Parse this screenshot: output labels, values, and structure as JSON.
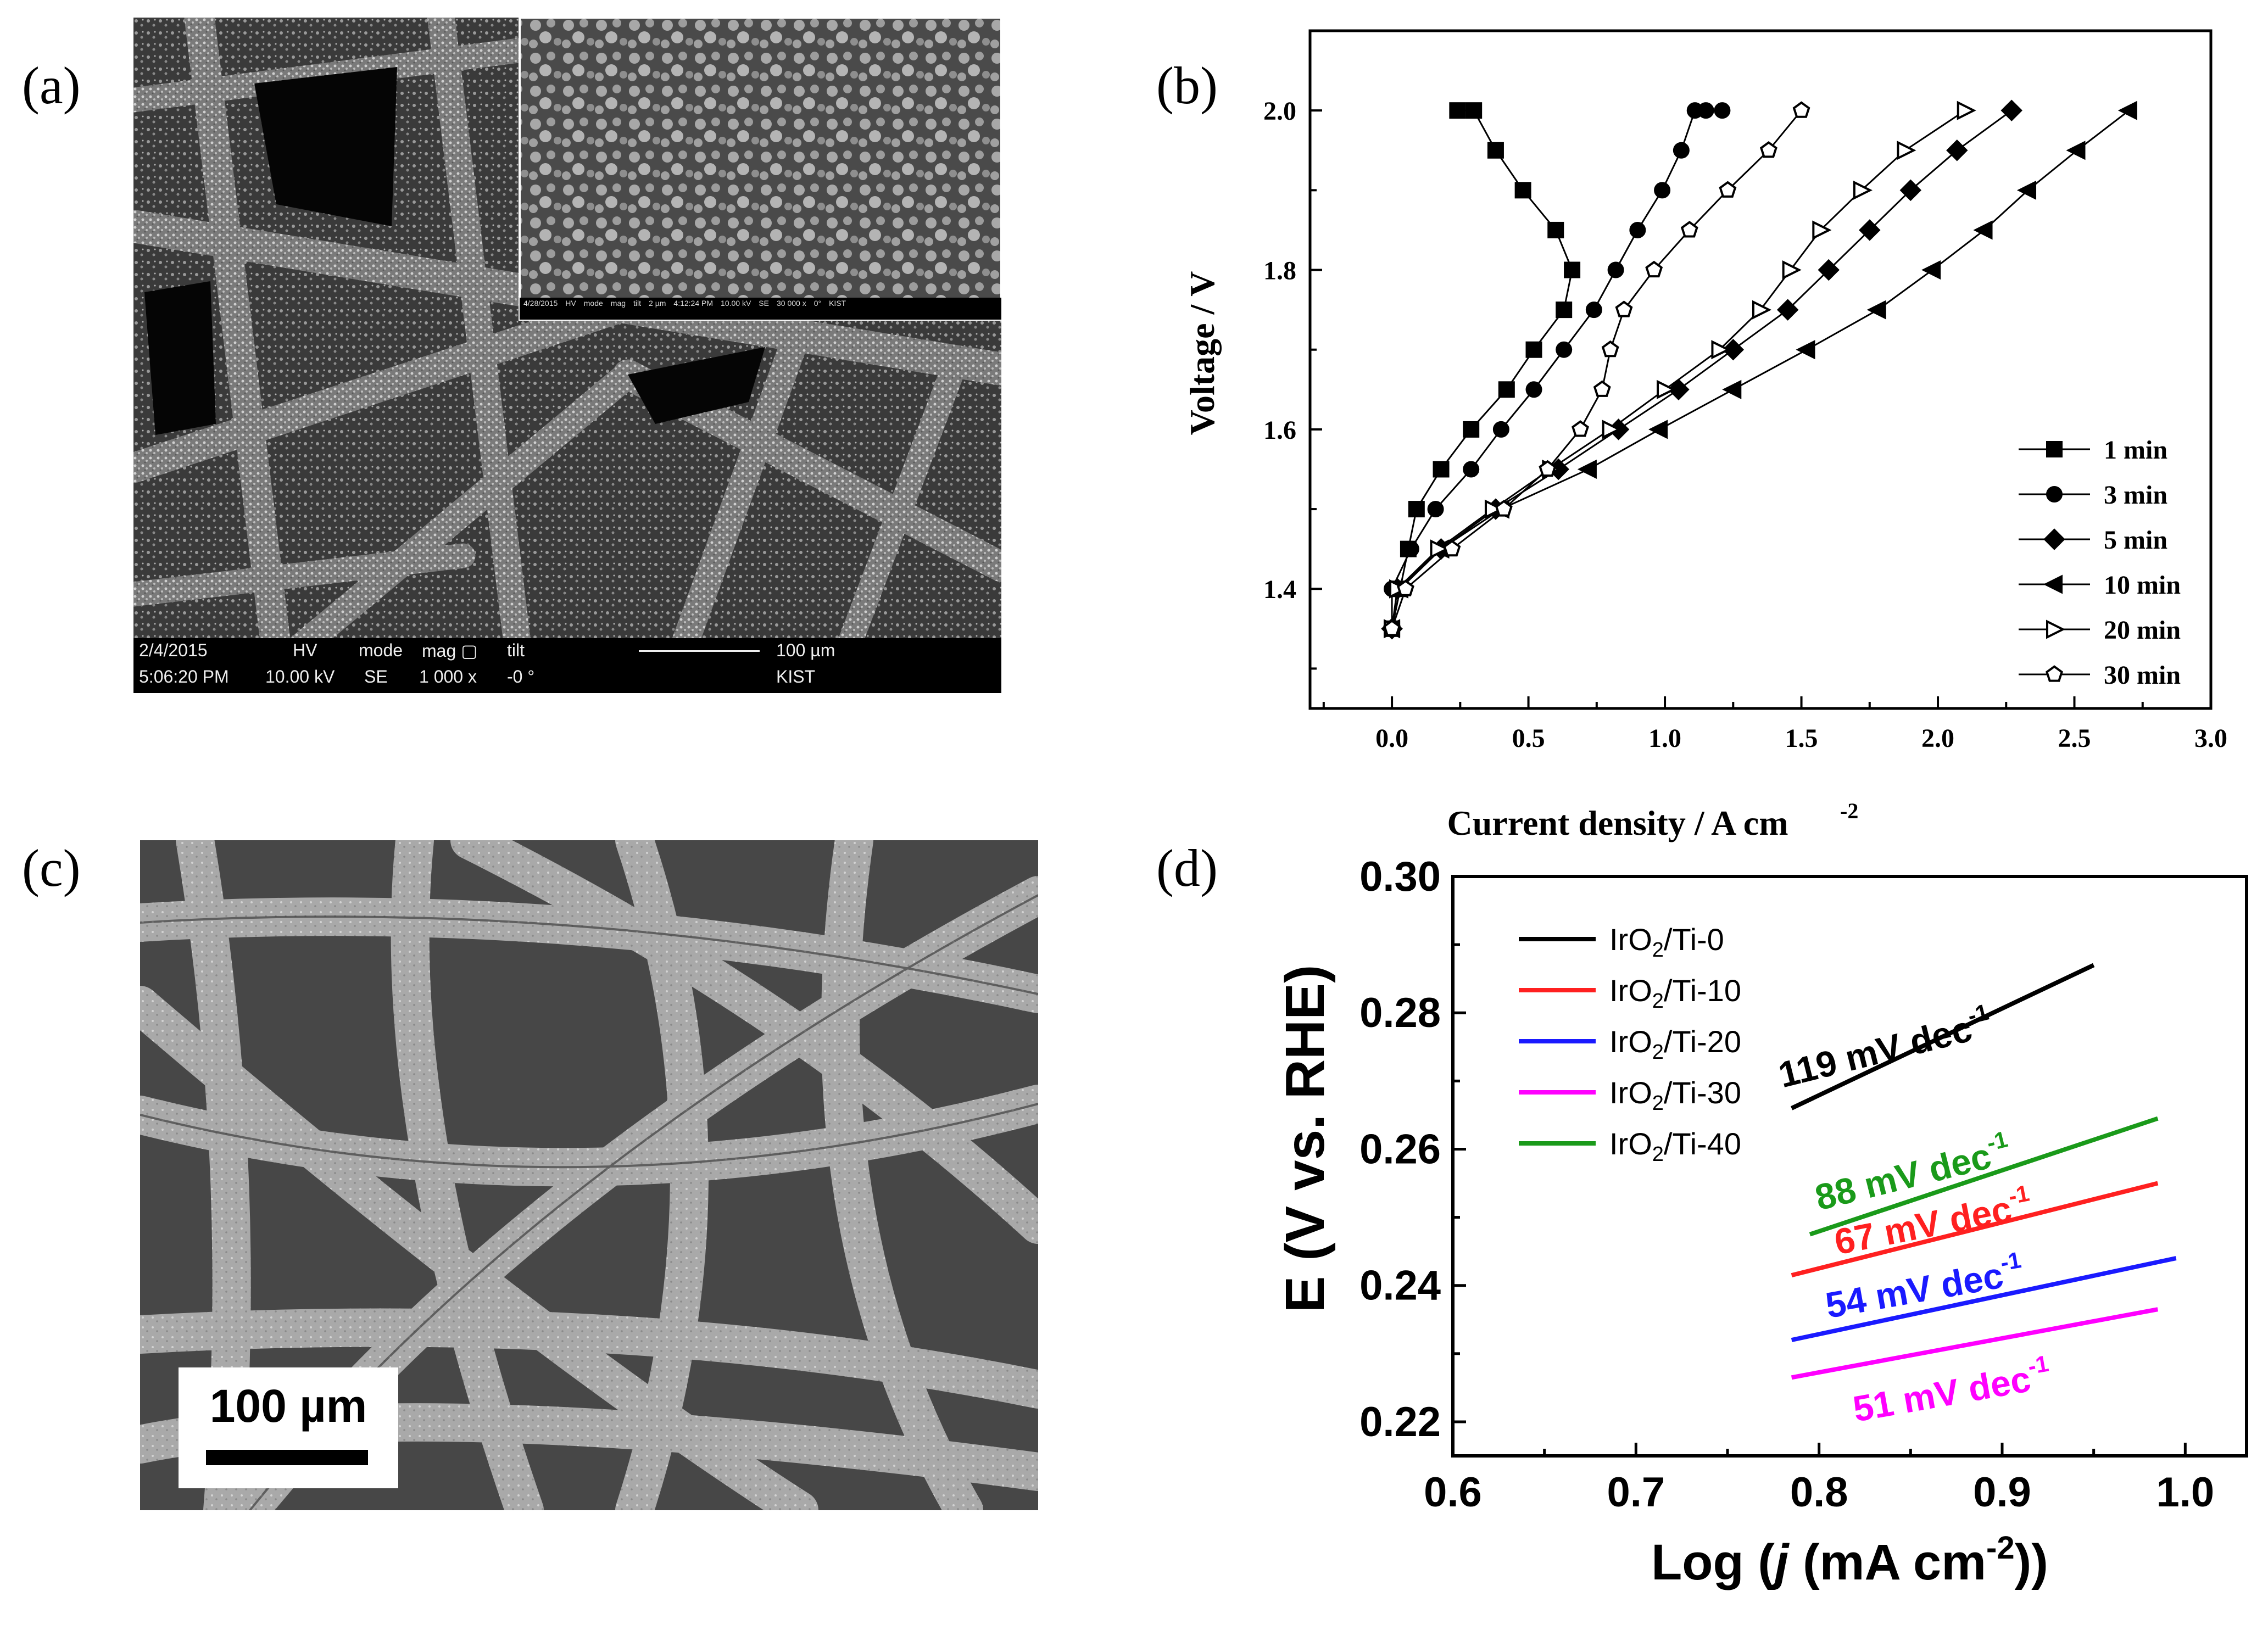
{
  "panels": {
    "a": {
      "label": "(a)",
      "inset_info": [
        "4/28/2015",
        "HV",
        "mode",
        "mag",
        "tilt",
        "2 µm",
        "4:12:24 PM",
        "10.00 kV",
        "SE",
        "30 000 x",
        "0°",
        "KIST"
      ],
      "info_bar": {
        "date": "2/4/2015",
        "time": "5:06:20 PM",
        "hv_label": "HV",
        "hv_value": "10.00 kV",
        "mode_label": "mode",
        "mode_value": "SE",
        "mag_label": "mag ▢",
        "mag_value": "1 000 x",
        "tilt_label": "tilt",
        "tilt_value": "-0 °",
        "scale": "100 µm",
        "org": "KIST"
      }
    },
    "b": {
      "label": "(b)"
    },
    "c": {
      "label": "(c)",
      "scale_bar": "100 µm"
    },
    "d": {
      "label": "(d)"
    }
  },
  "colors": {
    "black": "#000000",
    "red": "#ff2020",
    "blue": "#1a1aff",
    "magenta": "#ff00ff",
    "green": "#1a9a1a"
  },
  "chart_data": [
    {
      "id": "b",
      "type": "line",
      "xlabel": "Current density / A cm",
      "xlabel_sup": "-2",
      "ylabel": "Voltage / V",
      "xlim": [
        -0.3,
        3.0
      ],
      "ylim": [
        1.25,
        2.1
      ],
      "xticks": [
        "0.0",
        "0.5",
        "1.0",
        "1.5",
        "2.0",
        "2.5",
        "3.0"
      ],
      "yticks": [
        "1.4",
        "1.6",
        "1.8",
        "2.0"
      ],
      "legend_position": "bottom-right",
      "series": [
        {
          "name": "1 min",
          "marker": "square-filled",
          "x": [
            0.0,
            0.03,
            0.06,
            0.09,
            0.18,
            0.29,
            0.42,
            0.52,
            0.63,
            0.66,
            0.6,
            0.48,
            0.38,
            0.3,
            0.24
          ],
          "y": [
            1.35,
            1.4,
            1.45,
            1.5,
            1.55,
            1.6,
            1.65,
            1.7,
            1.75,
            1.8,
            1.85,
            1.9,
            1.95,
            2.0,
            2.0
          ]
        },
        {
          "name": "3 min",
          "marker": "circle-filled",
          "x": [
            0.0,
            0.0,
            0.07,
            0.16,
            0.29,
            0.4,
            0.52,
            0.63,
            0.74,
            0.82,
            0.9,
            0.99,
            1.06,
            1.11,
            1.15,
            1.21
          ],
          "y": [
            1.35,
            1.4,
            1.45,
            1.5,
            1.55,
            1.6,
            1.65,
            1.7,
            1.75,
            1.8,
            1.85,
            1.9,
            1.95,
            2.0,
            2.0,
            2.0
          ]
        },
        {
          "name": "5 min",
          "marker": "diamond-filled",
          "x": [
            0.0,
            0.02,
            0.18,
            0.38,
            0.61,
            0.83,
            1.05,
            1.25,
            1.45,
            1.6,
            1.75,
            1.9,
            2.07,
            2.27
          ],
          "y": [
            1.35,
            1.4,
            1.45,
            1.5,
            1.55,
            1.6,
            1.65,
            1.7,
            1.75,
            1.8,
            1.85,
            1.9,
            1.95,
            2.0
          ]
        },
        {
          "name": "10 min",
          "marker": "triangle-left-filled",
          "x": [
            0.0,
            0.03,
            0.18,
            0.4,
            0.72,
            0.98,
            1.25,
            1.52,
            1.78,
            1.98,
            2.17,
            2.33,
            2.51,
            2.7
          ],
          "y": [
            1.35,
            1.4,
            1.45,
            1.5,
            1.55,
            1.6,
            1.65,
            1.7,
            1.75,
            1.8,
            1.85,
            1.9,
            1.95,
            2.0
          ]
        },
        {
          "name": "20 min",
          "marker": "triangle-right-open",
          "x": [
            0.0,
            0.02,
            0.17,
            0.37,
            0.58,
            0.8,
            1.0,
            1.2,
            1.35,
            1.46,
            1.57,
            1.72,
            1.88,
            2.1
          ],
          "y": [
            1.35,
            1.4,
            1.45,
            1.5,
            1.55,
            1.6,
            1.65,
            1.7,
            1.75,
            1.8,
            1.85,
            1.9,
            1.95,
            2.0
          ]
        },
        {
          "name": "30 min",
          "marker": "pentagon-open",
          "x": [
            0.0,
            0.05,
            0.22,
            0.41,
            0.57,
            0.69,
            0.77,
            0.8,
            0.85,
            0.96,
            1.09,
            1.23,
            1.38,
            1.5
          ],
          "y": [
            1.35,
            1.4,
            1.45,
            1.5,
            1.55,
            1.6,
            1.65,
            1.7,
            1.75,
            1.8,
            1.85,
            1.9,
            1.95,
            2.0
          ]
        }
      ]
    },
    {
      "id": "d",
      "type": "line",
      "xlabel_parts": [
        "Log (",
        "j",
        " (mA cm",
        "-2",
        "))"
      ],
      "ylabel": "E (V vs. RHE)",
      "xlim": [
        0.6,
        1.05
      ],
      "ylim": [
        0.215,
        0.3
      ],
      "xticks": [
        "0.6",
        "0.7",
        "0.8",
        "0.9",
        "1.0"
      ],
      "yticks": [
        "0.22",
        "0.24",
        "0.26",
        "0.28",
        "0.30"
      ],
      "legend_position": "top-left",
      "series": [
        {
          "name": "IrO2/Ti-0",
          "color": "#000000",
          "x": [
            0.785,
            0.95
          ],
          "y": [
            0.266,
            0.287
          ],
          "annotation": "119 mV dec",
          "annotation_sup": "-1"
        },
        {
          "name": "IrO2/Ti-10",
          "color": "#ff2020",
          "x": [
            0.785,
            0.985
          ],
          "y": [
            0.2415,
            0.255
          ],
          "annotation": "67 mV dec",
          "annotation_sup": "-1"
        },
        {
          "name": "IrO2/Ti-20",
          "color": "#1a1aff",
          "x": [
            0.785,
            0.995
          ],
          "y": [
            0.232,
            0.244
          ],
          "annotation": "54 mV dec",
          "annotation_sup": "-1"
        },
        {
          "name": "IrO2/Ti-30",
          "color": "#ff00ff",
          "x": [
            0.785,
            0.985
          ],
          "y": [
            0.2265,
            0.2365
          ],
          "annotation": "51 mV dec",
          "annotation_sup": "-1"
        },
        {
          "name": "IrO2/Ti-40",
          "color": "#1a9a1a",
          "x": [
            0.795,
            0.985
          ],
          "y": [
            0.2475,
            0.2645
          ],
          "annotation": "88 mV dec",
          "annotation_sup": "-1"
        }
      ]
    }
  ]
}
